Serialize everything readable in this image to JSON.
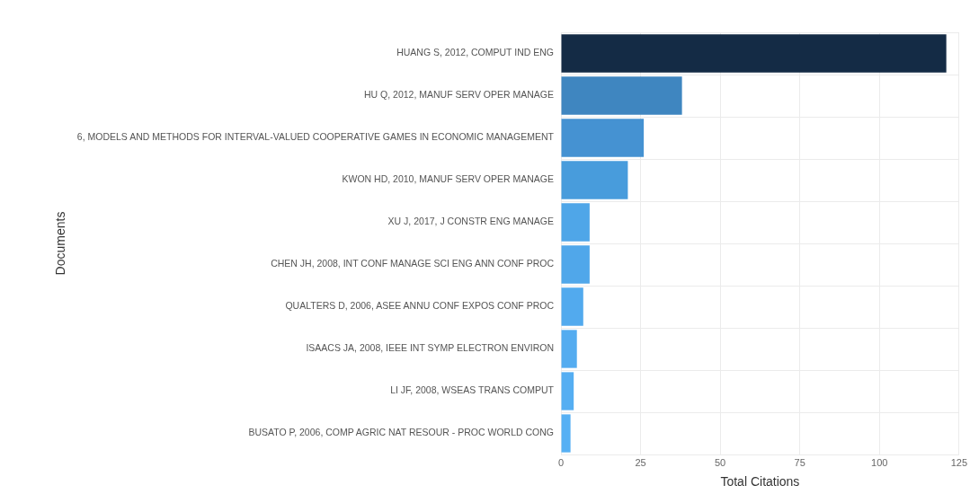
{
  "chart_data": {
    "type": "bar",
    "orientation": "horizontal",
    "xlabel": "Total Citations",
    "ylabel": "Documents",
    "categories": [
      "HUANG S, 2012, COMPUT IND ENG",
      "HU Q, 2012, MANUF SERV OPER MANAGE",
      "6, MODELS AND METHODS FOR INTERVAL-VALUED COOPERATIVE GAMES IN ECONOMIC MANAGEMENT",
      "KWON HD, 2010, MANUF SERV OPER MANAGE",
      "XU J, 2017, J CONSTR ENG MANAGE",
      "CHEN JH, 2008, INT CONF MANAGE SCI ENG ANN CONF PROC",
      "QUALTERS D, 2006, ASEE ANNU CONF EXPOS CONF PROC",
      "ISAACS JA, 2008, IEEE INT SYMP ELECTRON ENVIRON",
      "LI JF, 2008, WSEAS TRANS COMPUT",
      "BUSATO P, 2006, COMP AGRIC NAT RESOUR - PROC WORLD CONG"
    ],
    "values": [
      121,
      38,
      26,
      21,
      9,
      9,
      7,
      5,
      4,
      3
    ],
    "colors": [
      "#142b45",
      "#3f86c0",
      "#4592d2",
      "#489cdc",
      "#4fa6e8",
      "#50a7ea",
      "#52aaee",
      "#54acf0",
      "#55aef2",
      "#56b0f4"
    ],
    "xlim": [
      0,
      125
    ],
    "xticks": [
      0,
      25,
      50,
      75,
      100,
      125
    ],
    "grid": true
  }
}
